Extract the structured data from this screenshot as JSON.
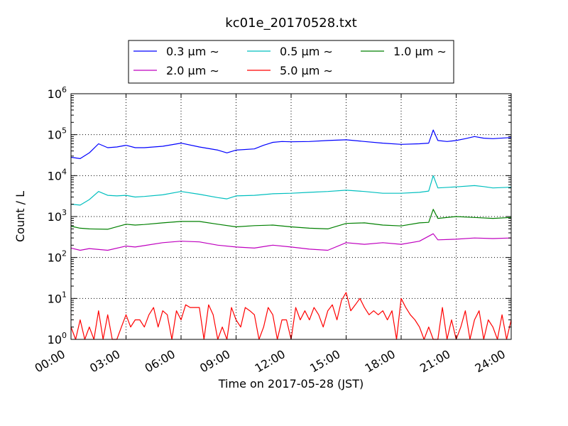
{
  "chart_data": {
    "type": "line",
    "title": "kc01e_20170528.txt",
    "xlabel": "Time on 2017-05-28 (JST)",
    "ylabel": "Count / L",
    "y_scale": "log",
    "ylim": [
      1,
      1000000
    ],
    "xlim": [
      "00:00",
      "24:00"
    ],
    "x_ticks": [
      "00:00",
      "03:00",
      "06:00",
      "09:00",
      "12:00",
      "15:00",
      "18:00",
      "21:00",
      "24:00"
    ],
    "y_ticks": [
      {
        "base": "10",
        "exp": "0"
      },
      {
        "base": "10",
        "exp": "1"
      },
      {
        "base": "10",
        "exp": "2"
      },
      {
        "base": "10",
        "exp": "3"
      },
      {
        "base": "10",
        "exp": "4"
      },
      {
        "base": "10",
        "exp": "5"
      },
      {
        "base": "10",
        "exp": "6"
      }
    ],
    "grid": true,
    "legend_position": "top-center",
    "series": [
      {
        "name": "0.3 μm ∼",
        "color": "#0000ff",
        "x": [
          "00:00",
          "00:30",
          "01:00",
          "01:30",
          "02:00",
          "02:30",
          "03:00",
          "03:30",
          "04:00",
          "05:00",
          "06:00",
          "07:00",
          "08:00",
          "08:30",
          "09:00",
          "10:00",
          "10:30",
          "11:00",
          "11:30",
          "12:00",
          "13:00",
          "14:00",
          "15:00",
          "16:00",
          "17:00",
          "18:00",
          "19:00",
          "19:30",
          "19:45",
          "20:00",
          "20:30",
          "21:00",
          "21:30",
          "22:00",
          "22:30",
          "23:00",
          "24:00"
        ],
        "values": [
          28000,
          26000,
          36000,
          60000,
          48000,
          50000,
          55000,
          48000,
          48000,
          52000,
          62000,
          50000,
          42000,
          36000,
          42000,
          45000,
          55000,
          65000,
          68000,
          67000,
          68000,
          72000,
          75000,
          68000,
          62000,
          58000,
          60000,
          62000,
          130000,
          72000,
          68000,
          72000,
          80000,
          90000,
          82000,
          80000,
          85000
        ]
      },
      {
        "name": "0.5 μm ∼",
        "color": "#00bfbf",
        "x": [
          "00:00",
          "00:30",
          "01:00",
          "01:30",
          "02:00",
          "02:30",
          "03:00",
          "03:30",
          "04:00",
          "05:00",
          "06:00",
          "07:00",
          "08:00",
          "08:30",
          "09:00",
          "10:00",
          "11:00",
          "12:00",
          "13:00",
          "14:00",
          "15:00",
          "16:00",
          "17:00",
          "18:00",
          "19:00",
          "19:30",
          "19:45",
          "20:00",
          "21:00",
          "22:00",
          "22:30",
          "23:00",
          "24:00"
        ],
        "values": [
          2000,
          1900,
          2600,
          4100,
          3300,
          3200,
          3300,
          3000,
          3100,
          3400,
          4100,
          3500,
          2900,
          2700,
          3200,
          3300,
          3600,
          3700,
          3900,
          4100,
          4400,
          4100,
          3700,
          3700,
          3900,
          4200,
          10000,
          5000,
          5300,
          5700,
          5400,
          5000,
          5200
        ]
      },
      {
        "name": "1.0 μm ∼",
        "color": "#008000",
        "x": [
          "00:00",
          "00:30",
          "01:00",
          "02:00",
          "03:00",
          "03:30",
          "04:00",
          "05:00",
          "06:00",
          "07:00",
          "08:00",
          "09:00",
          "10:00",
          "11:00",
          "12:00",
          "13:00",
          "14:00",
          "15:00",
          "16:00",
          "17:00",
          "18:00",
          "19:00",
          "19:30",
          "19:45",
          "20:00",
          "21:00",
          "22:00",
          "23:00",
          "24:00"
        ],
        "values": [
          580,
          520,
          500,
          490,
          650,
          620,
          640,
          700,
          760,
          760,
          650,
          560,
          600,
          620,
          560,
          520,
          500,
          680,
          700,
          620,
          590,
          700,
          720,
          1500,
          900,
          1000,
          950,
          900,
          950
        ]
      },
      {
        "name": "2.0 μm ∼",
        "color": "#bf00bf",
        "x": [
          "00:00",
          "00:30",
          "01:00",
          "02:00",
          "03:00",
          "03:30",
          "04:00",
          "05:00",
          "06:00",
          "07:00",
          "08:00",
          "09:00",
          "10:00",
          "11:00",
          "12:00",
          "13:00",
          "14:00",
          "15:00",
          "16:00",
          "17:00",
          "18:00",
          "19:00",
          "19:45",
          "20:00",
          "21:00",
          "22:00",
          "23:00",
          "24:00"
        ],
        "values": [
          170,
          150,
          165,
          150,
          190,
          180,
          195,
          230,
          250,
          240,
          200,
          180,
          170,
          200,
          180,
          160,
          150,
          230,
          210,
          230,
          210,
          250,
          380,
          270,
          280,
          300,
          290,
          300
        ]
      },
      {
        "name": "5.0 μm ∼",
        "color": "#ff0000",
        "x": [
          "00:00",
          "00:15",
          "00:30",
          "00:45",
          "01:00",
          "01:15",
          "01:30",
          "01:45",
          "02:00",
          "02:15",
          "02:30",
          "02:45",
          "03:00",
          "03:15",
          "03:30",
          "03:45",
          "04:00",
          "04:15",
          "04:30",
          "04:45",
          "05:00",
          "05:15",
          "05:30",
          "05:45",
          "06:00",
          "06:15",
          "06:30",
          "06:45",
          "07:00",
          "07:15",
          "07:30",
          "07:45",
          "08:00",
          "08:15",
          "08:30",
          "08:45",
          "09:00",
          "09:15",
          "09:30",
          "09:45",
          "10:00",
          "10:15",
          "10:30",
          "10:45",
          "11:00",
          "11:15",
          "11:30",
          "11:45",
          "12:00",
          "12:15",
          "12:30",
          "12:45",
          "13:00",
          "13:15",
          "13:30",
          "13:45",
          "14:00",
          "14:15",
          "14:30",
          "14:45",
          "15:00",
          "15:15",
          "15:30",
          "15:45",
          "16:00",
          "16:15",
          "16:30",
          "16:45",
          "17:00",
          "17:15",
          "17:30",
          "17:45",
          "18:00",
          "18:15",
          "18:30",
          "18:45",
          "19:00",
          "19:15",
          "19:30",
          "19:45",
          "20:00",
          "20:15",
          "20:30",
          "20:45",
          "21:00",
          "21:15",
          "21:30",
          "21:45",
          "22:00",
          "22:15",
          "22:30",
          "22:45",
          "23:00",
          "23:15",
          "23:30",
          "23:45",
          "24:00"
        ],
        "values": [
          2,
          1,
          3,
          1,
          2,
          1,
          5,
          1,
          4,
          1,
          1,
          2,
          4,
          2,
          3,
          3,
          2,
          4,
          6,
          2,
          5,
          4,
          1,
          5,
          3,
          7,
          6,
          6,
          6,
          1,
          7,
          4,
          1,
          2,
          1,
          6,
          3,
          2,
          6,
          5,
          4,
          1,
          2,
          6,
          4,
          1,
          3,
          3,
          1,
          6,
          3,
          5,
          3,
          6,
          4,
          2,
          5,
          7,
          3,
          9,
          14,
          5,
          7,
          10,
          6,
          4,
          5,
          4,
          5,
          3,
          5,
          1,
          10,
          6,
          4,
          3,
          2,
          1,
          2,
          1,
          1,
          6,
          1,
          3,
          1,
          2,
          5,
          1,
          3,
          5,
          1,
          3,
          2,
          1,
          4,
          1,
          3
        ]
      }
    ]
  }
}
